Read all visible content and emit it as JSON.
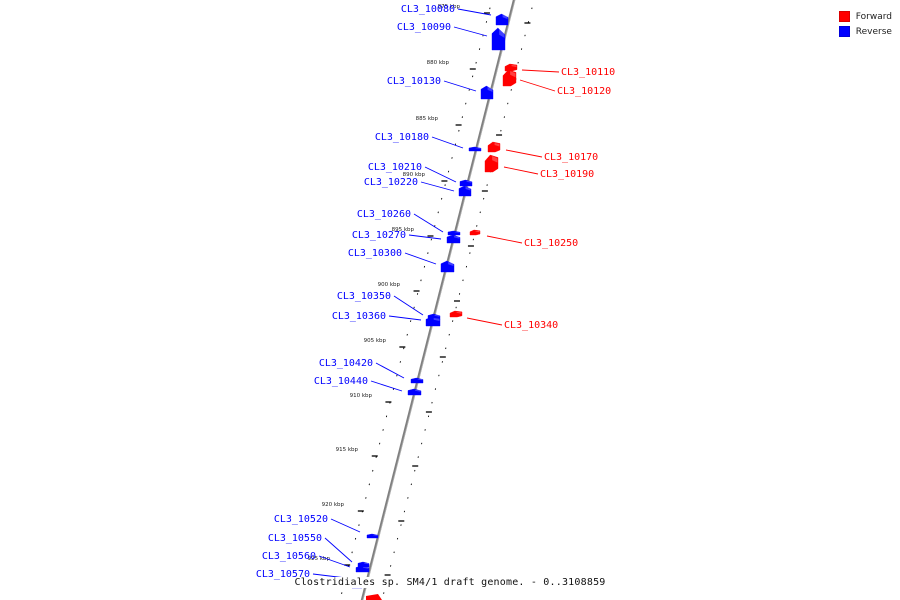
{
  "colors": {
    "forward": "#ff0000",
    "reverse": "#0000ff",
    "backbone": "#808080",
    "tick": "#000000"
  },
  "legend": [
    {
      "label": "Forward",
      "color": "#ff0000"
    },
    {
      "label": "Reverse",
      "color": "#0000ff"
    }
  ],
  "caption": "Clostridiales sp. SM4/1 draft genome. - 0..3108859",
  "scale_ticks": [
    "875 kbp",
    "880 kbp",
    "885 kbp",
    "890 kbp",
    "895 kbp",
    "900 kbp",
    "905 kbp",
    "910 kbp",
    "915 kbp",
    "920 kbp",
    "925 kbp"
  ],
  "genes": [
    {
      "name": "CL3_10080",
      "strand": "reverse"
    },
    {
      "name": "CL3_10090",
      "strand": "reverse"
    },
    {
      "name": "CL3_10110",
      "strand": "forward"
    },
    {
      "name": "CL3_10120",
      "strand": "forward"
    },
    {
      "name": "CL3_10130",
      "strand": "reverse"
    },
    {
      "name": "CL3_10170",
      "strand": "forward"
    },
    {
      "name": "CL3_10180",
      "strand": "reverse"
    },
    {
      "name": "CL3_10190",
      "strand": "forward"
    },
    {
      "name": "CL3_10210",
      "strand": "reverse"
    },
    {
      "name": "CL3_10220",
      "strand": "reverse"
    },
    {
      "name": "CL3_10250",
      "strand": "forward"
    },
    {
      "name": "CL3_10260",
      "strand": "reverse"
    },
    {
      "name": "CL3_10270",
      "strand": "reverse"
    },
    {
      "name": "CL3_10300",
      "strand": "reverse"
    },
    {
      "name": "CL3_10340",
      "strand": "forward"
    },
    {
      "name": "CL3_10350",
      "strand": "reverse"
    },
    {
      "name": "CL3_10360",
      "strand": "reverse"
    },
    {
      "name": "CL3_10420",
      "strand": "reverse"
    },
    {
      "name": "CL3_10440",
      "strand": "reverse"
    },
    {
      "name": "CL3_10520",
      "strand": "reverse"
    },
    {
      "name": "CL3_10550",
      "strand": "reverse"
    },
    {
      "name": "CL3_10560",
      "strand": "reverse"
    },
    {
      "name": "CL3_10570",
      "strand": "reverse"
    }
  ]
}
